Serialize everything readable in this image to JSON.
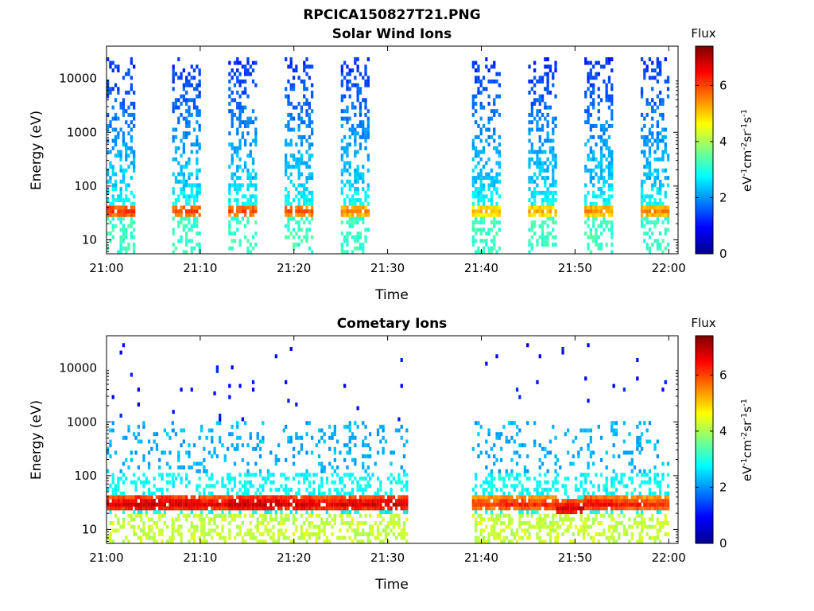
{
  "figure": {
    "title": "RPCICA150827T21.PNG"
  },
  "colorbar": {
    "title": "Flux",
    "unit_label": "eV-1cm-2sr-1s-1",
    "range": [
      0,
      7.4
    ],
    "ticks": [
      "0",
      "2",
      "4",
      "6"
    ],
    "colormap": "jet",
    "colormap_colors": [
      "#00008f",
      "#0000ff",
      "#0080ff",
      "#00ffff",
      "#80ff80",
      "#ffff00",
      "#ff8000",
      "#ff0000",
      "#800000"
    ]
  },
  "chart_data": [
    {
      "type": "heatmap",
      "title": "Solar Wind Ions",
      "xlabel": "Time",
      "ylabel": "Energy (eV)",
      "yscale": "log",
      "xlim": [
        "21:00",
        "22:01"
      ],
      "ylim": [
        5.5,
        40000
      ],
      "xticks": [
        "21:00",
        "21:10",
        "21:20",
        "21:30",
        "21:40",
        "21:50",
        "22:00"
      ],
      "yticks": [
        "10",
        "100",
        "1000",
        "10000"
      ],
      "data_gap": [
        "21:33",
        "21:38"
      ],
      "sweeps": [
        {
          "start": "21:00",
          "end": "21:03",
          "peak_energy_eV": 35,
          "peak_flux": 6.2
        },
        {
          "start": "21:07",
          "end": "21:10",
          "peak_energy_eV": 35,
          "peak_flux": 6.0
        },
        {
          "start": "21:13",
          "end": "21:16",
          "peak_energy_eV": 35,
          "peak_flux": 6.0
        },
        {
          "start": "21:19",
          "end": "21:22",
          "peak_energy_eV": 35,
          "peak_flux": 5.9
        },
        {
          "start": "21:25",
          "end": "21:28",
          "peak_energy_eV": 35,
          "peak_flux": 5.6
        },
        {
          "start": "21:39",
          "end": "21:42",
          "peak_energy_eV": 35,
          "peak_flux": 5.2
        },
        {
          "start": "21:45",
          "end": "21:48",
          "peak_energy_eV": 35,
          "peak_flux": 5.3
        },
        {
          "start": "21:51",
          "end": "21:54",
          "peak_energy_eV": 35,
          "peak_flux": 5.5
        },
        {
          "start": "21:57",
          "end": "22:00",
          "peak_energy_eV": 35,
          "peak_flux": 5.6
        }
      ]
    },
    {
      "type": "heatmap",
      "title": "Cometary Ions",
      "xlabel": "Time",
      "ylabel": "Energy (eV)",
      "yscale": "log",
      "xlim": [
        "21:00",
        "22:01"
      ],
      "ylim": [
        5.5,
        40000
      ],
      "xticks": [
        "21:00",
        "21:10",
        "21:20",
        "21:30",
        "21:40",
        "21:50",
        "22:00"
      ],
      "yticks": [
        "10",
        "100",
        "1000",
        "10000"
      ],
      "data_gap": [
        "21:33",
        "21:38"
      ],
      "sweeps": [
        {
          "start": "21:00",
          "end": "21:03",
          "peak_energy_eV": 30,
          "peak_flux": 6.8
        },
        {
          "start": "21:03",
          "end": "21:07",
          "peak_energy_eV": 30,
          "peak_flux": 7.0
        },
        {
          "start": "21:07",
          "end": "21:10",
          "peak_energy_eV": 30,
          "peak_flux": 6.9
        },
        {
          "start": "21:10",
          "end": "21:13",
          "peak_energy_eV": 30,
          "peak_flux": 6.7
        },
        {
          "start": "21:13",
          "end": "21:16",
          "peak_energy_eV": 30,
          "peak_flux": 7.0
        },
        {
          "start": "21:16",
          "end": "21:19",
          "peak_energy_eV": 30,
          "peak_flux": 7.0
        },
        {
          "start": "21:19",
          "end": "21:22",
          "peak_energy_eV": 30,
          "peak_flux": 6.9
        },
        {
          "start": "21:22",
          "end": "21:25",
          "peak_energy_eV": 30,
          "peak_flux": 6.7
        },
        {
          "start": "21:25",
          "end": "21:28",
          "peak_energy_eV": 30,
          "peak_flux": 6.8
        },
        {
          "start": "21:28",
          "end": "21:32",
          "peak_energy_eV": 30,
          "peak_flux": 6.9
        },
        {
          "start": "21:39",
          "end": "21:42",
          "peak_energy_eV": 30,
          "peak_flux": 6.2
        },
        {
          "start": "21:42",
          "end": "21:45",
          "peak_energy_eV": 30,
          "peak_flux": 6.4
        },
        {
          "start": "21:45",
          "end": "21:48",
          "peak_energy_eV": 30,
          "peak_flux": 6.3
        },
        {
          "start": "21:48",
          "end": "21:51",
          "peak_energy_eV": 25,
          "peak_flux": 6.9
        },
        {
          "start": "21:51",
          "end": "21:54",
          "peak_energy_eV": 30,
          "peak_flux": 6.6
        },
        {
          "start": "21:54",
          "end": "21:57",
          "peak_energy_eV": 30,
          "peak_flux": 6.4
        },
        {
          "start": "21:57",
          "end": "22:00",
          "peak_energy_eV": 30,
          "peak_flux": 6.2
        }
      ]
    }
  ]
}
